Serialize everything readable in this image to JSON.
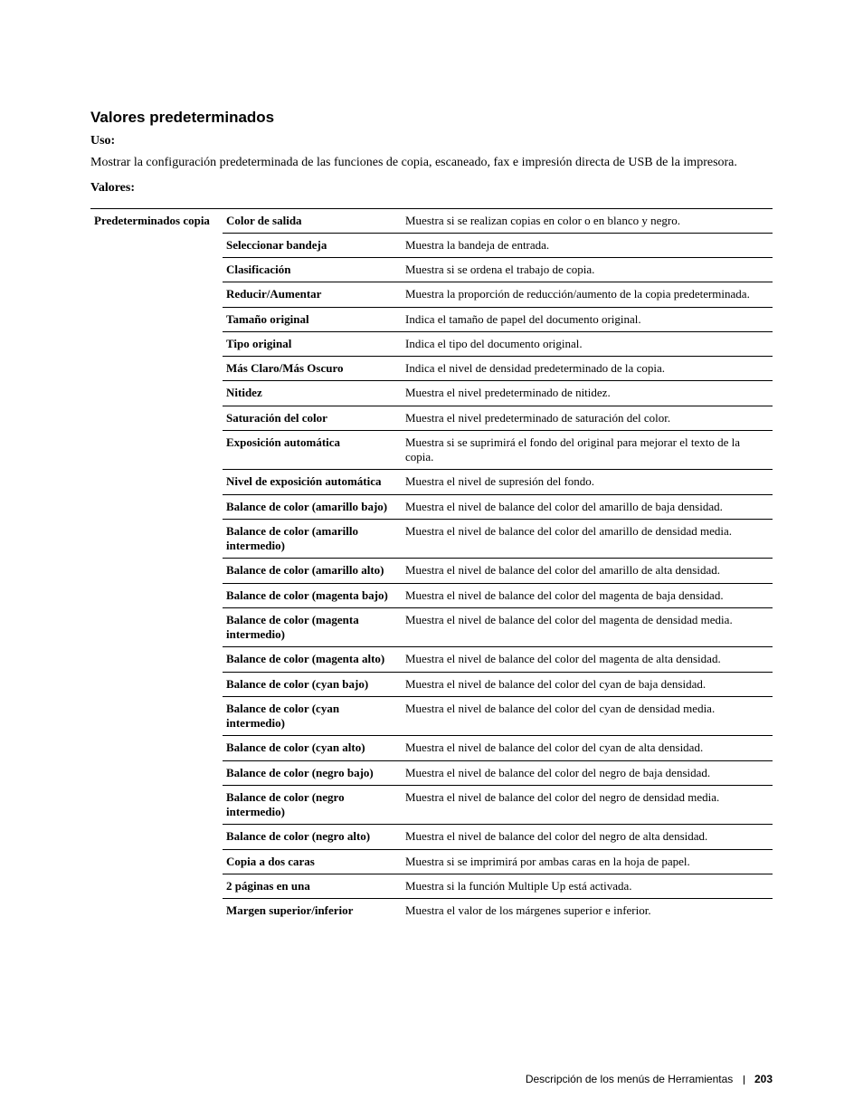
{
  "section_title": "Valores predeterminados",
  "uso_label": "Uso:",
  "uso_text": "Mostrar la configuración predeterminada de las funciones de copia, escaneado, fax e impresión directa de USB de la impresora.",
  "valores_label": "Valores:",
  "group_label": "Predeterminados copia",
  "rows": [
    {
      "name": "Color de salida",
      "desc": "Muestra si se realizan copias en color o en blanco y negro."
    },
    {
      "name": "Seleccionar bandeja",
      "desc": "Muestra la bandeja de entrada."
    },
    {
      "name": "Clasificación",
      "desc": "Muestra si se ordena el trabajo de copia."
    },
    {
      "name": "Reducir/Aumentar",
      "desc": "Muestra la proporción de reducción/aumento de la copia predeterminada."
    },
    {
      "name": "Tamaño original",
      "desc": "Indica el tamaño de papel del documento original."
    },
    {
      "name": "Tipo original",
      "desc": "Indica el tipo del documento original."
    },
    {
      "name": "Más Claro/Más Oscuro",
      "desc": "Indica el nivel de densidad predeterminado de la copia."
    },
    {
      "name": "Nitidez",
      "desc": "Muestra el nivel predeterminado de nitidez."
    },
    {
      "name": "Saturación del color",
      "desc": "Muestra el nivel predeterminado de saturación del color."
    },
    {
      "name": "Exposición automática",
      "desc": "Muestra si se suprimirá el fondo del original para mejorar el texto de la copia."
    },
    {
      "name": "Nivel de exposición automática",
      "desc": "Muestra el nivel de supresión del fondo."
    },
    {
      "name": "Balance de color (amarillo bajo)",
      "desc": "Muestra el nivel de balance del color del amarillo de baja densidad."
    },
    {
      "name": "Balance de color (amarillo intermedio)",
      "desc": "Muestra el nivel de balance del color del amarillo de densidad media."
    },
    {
      "name": "Balance de color (amarillo alto)",
      "desc": "Muestra el nivel de balance del color del amarillo de alta densidad."
    },
    {
      "name": "Balance de color (magenta bajo)",
      "desc": "Muestra el nivel de balance del color del magenta de baja densidad."
    },
    {
      "name": "Balance de color (magenta intermedio)",
      "desc": "Muestra el nivel de balance del color del magenta de densidad media."
    },
    {
      "name": "Balance de color (magenta alto)",
      "desc": "Muestra el nivel de balance del color del magenta de alta densidad."
    },
    {
      "name": "Balance de color (cyan bajo)",
      "desc": "Muestra el nivel de balance del color del cyan de baja densidad."
    },
    {
      "name": "Balance de color (cyan intermedio)",
      "desc": "Muestra el nivel de balance del color del cyan de densidad media."
    },
    {
      "name": "Balance de color (cyan alto)",
      "desc": "Muestra el nivel de balance del color del cyan de alta densidad."
    },
    {
      "name": "Balance de color (negro bajo)",
      "desc": "Muestra el nivel de balance del color del negro de baja densidad."
    },
    {
      "name": "Balance de color (negro intermedio)",
      "desc": "Muestra el nivel de balance del color del negro de densidad media."
    },
    {
      "name": "Balance de color (negro alto)",
      "desc": "Muestra el nivel de balance del color del negro de alta densidad."
    },
    {
      "name": "Copia a dos caras",
      "desc": "Muestra si se imprimirá por ambas caras en la hoja de papel."
    },
    {
      "name": "2 páginas en una",
      "desc": "Muestra si la función Multiple Up está activada."
    },
    {
      "name": "Margen superior/inferior",
      "desc": "Muestra el valor de los márgenes superior e inferior."
    }
  ],
  "footer": {
    "text": "Descripción de los menús de Herramientas",
    "page": "203"
  }
}
